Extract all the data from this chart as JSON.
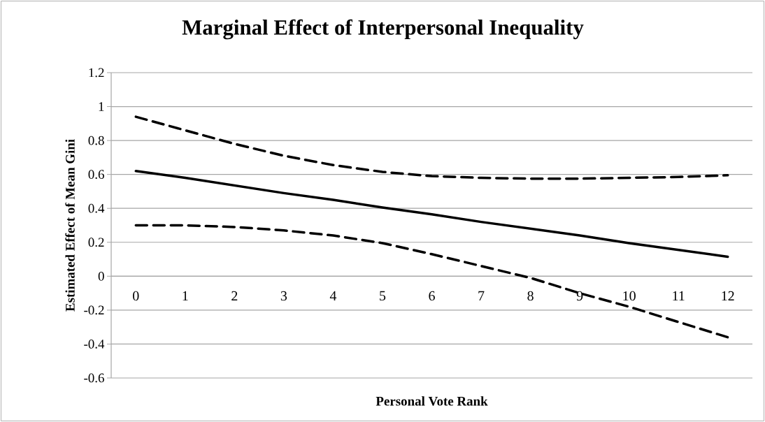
{
  "chart_data": {
    "type": "line",
    "title": "Marginal Effect of Interpersonal Inequality",
    "xlabel": "Personal Vote Rank",
    "ylabel": "Estimated Effect of Mean Gini",
    "categories": [
      "0",
      "1",
      "2",
      "3",
      "4",
      "5",
      "6",
      "7",
      "8",
      "9",
      "10",
      "11",
      "12"
    ],
    "series": [
      {
        "color": "#000000",
        "line_style": "dashed",
        "values": [
          0.94,
          0.86,
          0.78,
          0.71,
          0.655,
          0.615,
          0.59,
          0.58,
          0.575,
          0.575,
          0.58,
          0.585,
          0.595
        ]
      },
      {
        "color": "#000000",
        "line_style": "solid",
        "values": [
          0.62,
          0.58,
          0.535,
          0.49,
          0.45,
          0.405,
          0.365,
          0.32,
          0.28,
          0.24,
          0.195,
          0.155,
          0.115
        ]
      },
      {
        "color": "#000000",
        "line_style": "dashed",
        "values": [
          0.3,
          0.3,
          0.29,
          0.27,
          0.24,
          0.195,
          0.13,
          0.06,
          -0.01,
          -0.1,
          -0.18,
          -0.27,
          -0.36
        ]
      }
    ],
    "ylim": [
      -0.6,
      1.2
    ],
    "yticks": [
      1.2,
      1,
      0.8,
      0.6,
      0.4,
      0.2,
      0,
      -0.2,
      -0.4,
      -0.6
    ],
    "grid": "y"
  }
}
